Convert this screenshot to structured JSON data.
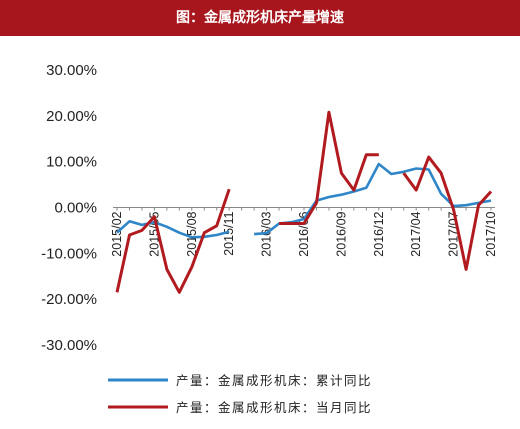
{
  "chart_data": {
    "type": "line",
    "title": "图：金属成形机床产量增速",
    "xlabel": "",
    "ylabel": "",
    "ylim": [
      -30,
      30
    ],
    "yticks": [
      30,
      20,
      10,
      0,
      -10,
      -20,
      -30
    ],
    "ytick_labels": [
      "30.00%",
      "20.00%",
      "10.00%",
      "0.00%",
      "-10.00%",
      "-20.00%",
      "-30.00%"
    ],
    "x_labels": [
      {
        "label": "2015/02",
        "index": 0
      },
      {
        "label": "2015/05",
        "index": 3
      },
      {
        "label": "2015/08",
        "index": 6
      },
      {
        "label": "2015/11",
        "index": 9
      },
      {
        "label": "2016/03",
        "index": 12
      },
      {
        "label": "2016/06",
        "index": 15
      },
      {
        "label": "2016/09",
        "index": 18
      },
      {
        "label": "2016/12",
        "index": 21
      },
      {
        "label": "2017/04",
        "index": 24
      },
      {
        "label": "2017/07",
        "index": 27
      },
      {
        "label": "2017/10",
        "index": 30
      }
    ],
    "n_points": 31,
    "legend_position": "bottom",
    "grid": false,
    "series": [
      {
        "name": "产量：金属成形机床：累计同比",
        "color": "#2e86c8",
        "values": [
          -5.5,
          -3.0,
          -3.8,
          -3.2,
          -4.2,
          -5.5,
          -6.5,
          -6.4,
          -6.0,
          -5.3,
          null,
          -5.8,
          -5.6,
          -3.5,
          -3.2,
          -2.5,
          1.5,
          2.3,
          2.8,
          3.5,
          4.3,
          9.5,
          7.3,
          7.8,
          8.5,
          8.3,
          3.0,
          0.3,
          0.5,
          1.0,
          1.5
        ]
      },
      {
        "name": "产量：金属成形机床：当月同比",
        "color": "#b11a1f",
        "values": [
          -18.5,
          -6.0,
          -5.0,
          -2.0,
          -13.5,
          -18.5,
          -13.0,
          -5.5,
          -4.0,
          4.0,
          null,
          null,
          null,
          -3.5,
          -3.5,
          -3.5,
          1.0,
          20.8,
          7.5,
          3.8,
          11.5,
          11.5,
          null,
          7.5,
          3.8,
          11.0,
          7.5,
          -0.5,
          -13.5,
          0.5,
          3.5
        ]
      }
    ]
  }
}
